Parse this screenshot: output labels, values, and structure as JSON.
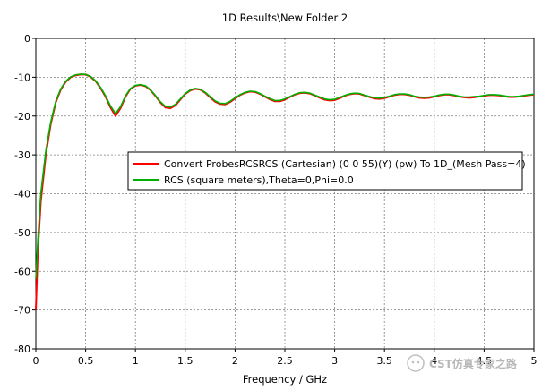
{
  "chart_data": {
    "type": "line",
    "title": "1D Results\\New Folder 2",
    "xlabel": "Frequency / GHz",
    "ylabel": "",
    "xlim": [
      0,
      5
    ],
    "ylim": [
      -80,
      0
    ],
    "xticks": [
      "0",
      "0.5",
      "1",
      "1.5",
      "2",
      "2.5",
      "3",
      "3.5",
      "4",
      "4.5",
      "5"
    ],
    "yticks": [
      "0",
      "-10",
      "-20",
      "-30",
      "-40",
      "-50",
      "-60",
      "-70",
      "-80"
    ],
    "grid": true,
    "legend_position": "center-right",
    "series": [
      {
        "name": "Convert ProbesRCSRCS (Cartesian) (0 0 55)(Y) (pw) To 1D_(Mesh Pass=4)",
        "color": "#ff0000",
        "x": [
          0.0,
          0.02,
          0.05,
          0.1,
          0.15,
          0.2,
          0.25,
          0.3,
          0.35,
          0.4,
          0.45,
          0.5,
          0.55,
          0.6,
          0.65,
          0.7,
          0.75,
          0.8,
          0.85,
          0.9,
          0.95,
          1.0,
          1.05,
          1.1,
          1.15,
          1.2,
          1.25,
          1.3,
          1.35,
          1.4,
          1.45,
          1.5,
          1.55,
          1.6,
          1.65,
          1.7,
          1.75,
          1.8,
          1.85,
          1.9,
          1.95,
          2.0,
          2.05,
          2.1,
          2.15,
          2.2,
          2.25,
          2.3,
          2.35,
          2.4,
          2.45,
          2.5,
          2.55,
          2.6,
          2.65,
          2.7,
          2.75,
          2.8,
          2.85,
          2.9,
          2.95,
          3.0,
          3.05,
          3.1,
          3.15,
          3.2,
          3.25,
          3.3,
          3.35,
          3.4,
          3.45,
          3.5,
          3.55,
          3.6,
          3.65,
          3.7,
          3.75,
          3.8,
          3.85,
          3.9,
          3.95,
          4.0,
          4.05,
          4.1,
          4.15,
          4.2,
          4.25,
          4.3,
          4.35,
          4.4,
          4.45,
          4.5,
          4.55,
          4.6,
          4.65,
          4.7,
          4.75,
          4.8,
          4.85,
          4.9,
          4.95,
          5.0
        ],
        "y": [
          -70,
          -55,
          -42,
          -30,
          -22,
          -16.5,
          -13.2,
          -11.2,
          -10.0,
          -9.5,
          -9.3,
          -9.3,
          -9.9,
          -11.0,
          -12.8,
          -15.0,
          -17.8,
          -20.0,
          -18.0,
          -15.0,
          -13.0,
          -12.2,
          -12.0,
          -12.3,
          -13.3,
          -14.8,
          -16.5,
          -17.8,
          -18.0,
          -17.3,
          -15.8,
          -14.3,
          -13.4,
          -13.0,
          -13.2,
          -14.0,
          -15.2,
          -16.3,
          -16.9,
          -17.0,
          -16.4,
          -15.5,
          -14.6,
          -14.0,
          -13.7,
          -13.8,
          -14.3,
          -15.0,
          -15.7,
          -16.2,
          -16.2,
          -15.8,
          -15.1,
          -14.5,
          -14.1,
          -14.0,
          -14.2,
          -14.7,
          -15.3,
          -15.8,
          -16.0,
          -15.9,
          -15.4,
          -14.8,
          -14.4,
          -14.2,
          -14.3,
          -14.7,
          -15.1,
          -15.5,
          -15.6,
          -15.4,
          -15.0,
          -14.6,
          -14.4,
          -14.4,
          -14.6,
          -15.0,
          -15.3,
          -15.4,
          -15.3,
          -15.0,
          -14.7,
          -14.5,
          -14.5,
          -14.7,
          -15.0,
          -15.2,
          -15.3,
          -15.2,
          -15.0,
          -14.8,
          -14.6,
          -14.6,
          -14.7,
          -14.9,
          -15.1,
          -15.1,
          -15.0,
          -14.8,
          -14.6,
          -14.5
        ]
      },
      {
        "name": "RCS (square meters),Theta=0,Phi=0.0",
        "color": "#00b000",
        "x": [
          0.0,
          0.02,
          0.05,
          0.1,
          0.15,
          0.2,
          0.25,
          0.3,
          0.35,
          0.4,
          0.45,
          0.5,
          0.55,
          0.6,
          0.65,
          0.7,
          0.75,
          0.8,
          0.85,
          0.9,
          0.95,
          1.0,
          1.05,
          1.1,
          1.15,
          1.2,
          1.25,
          1.3,
          1.35,
          1.4,
          1.45,
          1.5,
          1.55,
          1.6,
          1.65,
          1.7,
          1.75,
          1.8,
          1.85,
          1.9,
          1.95,
          2.0,
          2.05,
          2.1,
          2.15,
          2.2,
          2.25,
          2.3,
          2.35,
          2.4,
          2.45,
          2.5,
          2.55,
          2.6,
          2.65,
          2.7,
          2.75,
          2.8,
          2.85,
          2.9,
          2.95,
          3.0,
          3.05,
          3.1,
          3.15,
          3.2,
          3.25,
          3.3,
          3.35,
          3.4,
          3.45,
          3.5,
          3.55,
          3.6,
          3.65,
          3.7,
          3.75,
          3.8,
          3.85,
          3.9,
          3.95,
          4.0,
          4.05,
          4.1,
          4.15,
          4.2,
          4.25,
          4.3,
          4.35,
          4.4,
          4.45,
          4.5,
          4.55,
          4.6,
          4.65,
          4.7,
          4.75,
          4.8,
          4.85,
          4.9,
          4.95,
          5.0
        ],
        "y": [
          -62,
          -52,
          -40,
          -29,
          -21.5,
          -16.2,
          -13.0,
          -11.0,
          -9.9,
          -9.4,
          -9.2,
          -9.3,
          -9.8,
          -10.9,
          -12.6,
          -14.8,
          -17.4,
          -19.4,
          -17.6,
          -14.8,
          -12.9,
          -12.1,
          -11.9,
          -12.2,
          -13.2,
          -14.7,
          -16.3,
          -17.5,
          -17.7,
          -17.0,
          -15.6,
          -14.2,
          -13.3,
          -12.9,
          -13.1,
          -13.9,
          -15.0,
          -16.1,
          -16.7,
          -16.8,
          -16.2,
          -15.3,
          -14.5,
          -13.9,
          -13.6,
          -13.7,
          -14.2,
          -14.9,
          -15.5,
          -16.0,
          -16.0,
          -15.6,
          -15.0,
          -14.4,
          -14.0,
          -13.9,
          -14.1,
          -14.6,
          -15.1,
          -15.6,
          -15.8,
          -15.7,
          -15.2,
          -14.7,
          -14.3,
          -14.1,
          -14.2,
          -14.6,
          -15.0,
          -15.3,
          -15.4,
          -15.2,
          -14.9,
          -14.5,
          -14.3,
          -14.3,
          -14.5,
          -14.9,
          -15.1,
          -15.2,
          -15.1,
          -14.9,
          -14.6,
          -14.4,
          -14.4,
          -14.6,
          -14.9,
          -15.1,
          -15.1,
          -15.0,
          -14.9,
          -14.7,
          -14.5,
          -14.5,
          -14.6,
          -14.8,
          -15.0,
          -15.0,
          -14.9,
          -14.7,
          -14.5,
          -14.4
        ]
      }
    ]
  },
  "watermark": {
    "text": "CST仿真专家之路"
  }
}
